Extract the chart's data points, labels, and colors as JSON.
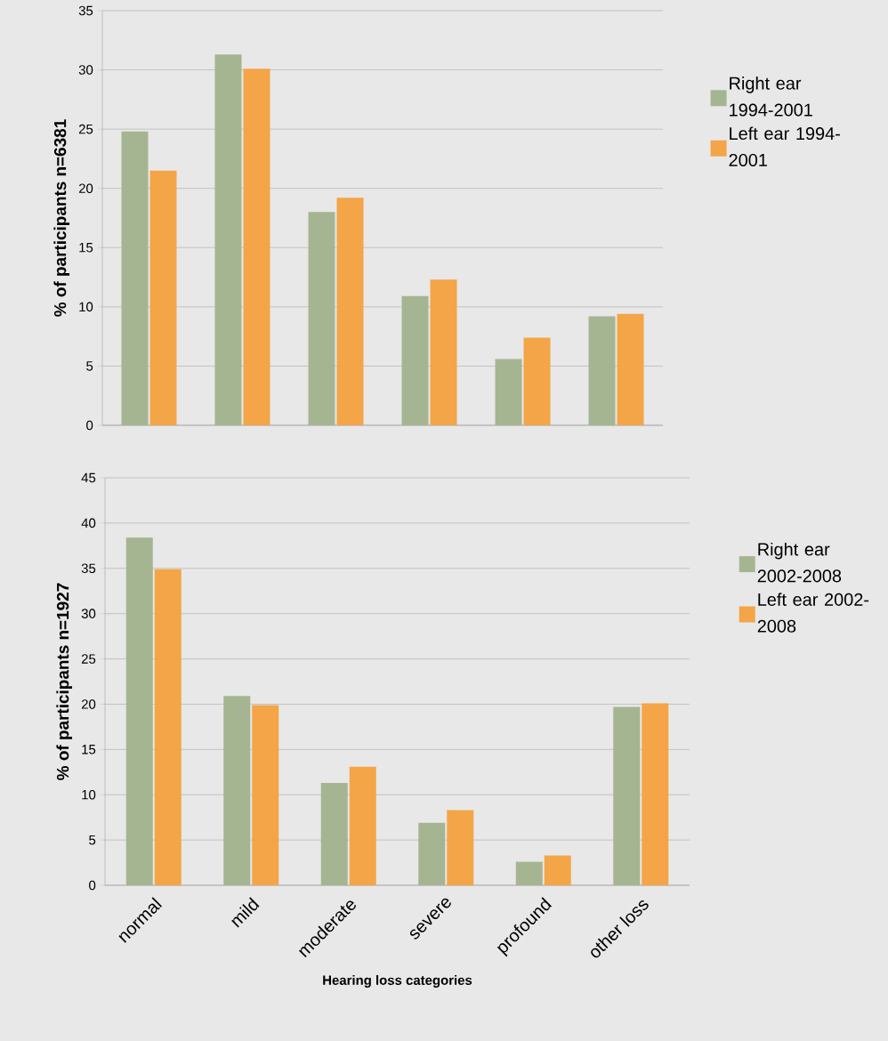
{
  "chart_data": [
    {
      "type": "bar",
      "ylabel": "% of participants n=6381",
      "categories": [
        null,
        null,
        null,
        null,
        null,
        null
      ],
      "series": [
        {
          "name": "Right ear 1994-2001",
          "color": "#a5b592",
          "values": [
            24.8,
            31.3,
            18.0,
            10.9,
            5.6,
            9.2
          ]
        },
        {
          "name": "Left ear 1994-2001",
          "color": "#f3a547",
          "values": [
            21.5,
            30.1,
            19.2,
            12.3,
            7.4,
            9.4
          ]
        }
      ],
      "ylim": [
        0,
        35
      ],
      "yticks": [
        0,
        5,
        10,
        15,
        20,
        25,
        30,
        35
      ],
      "grid": "y",
      "legend": "right",
      "tick_labels": "y"
    },
    {
      "type": "bar",
      "xlabel": "Hearing loss categories",
      "ylabel": "% of participants n=1927",
      "categories": [
        "normal",
        "mild",
        "moderate",
        "severe",
        "profound",
        "other loss"
      ],
      "series": [
        {
          "name": "Right ear 2002-2008",
          "color": "#a5b592",
          "values": [
            38.4,
            20.9,
            11.3,
            6.9,
            2.6,
            19.7
          ]
        },
        {
          "name": "Left ear 2002-2008",
          "color": "#f3a547",
          "values": [
            34.9,
            19.9,
            13.1,
            8.3,
            3.3,
            20.1
          ]
        }
      ],
      "ylim": [
        0,
        45
      ],
      "yticks": [
        0,
        5,
        10,
        15,
        20,
        25,
        30,
        35,
        40,
        45
      ],
      "grid": "y",
      "legend": "right"
    }
  ]
}
